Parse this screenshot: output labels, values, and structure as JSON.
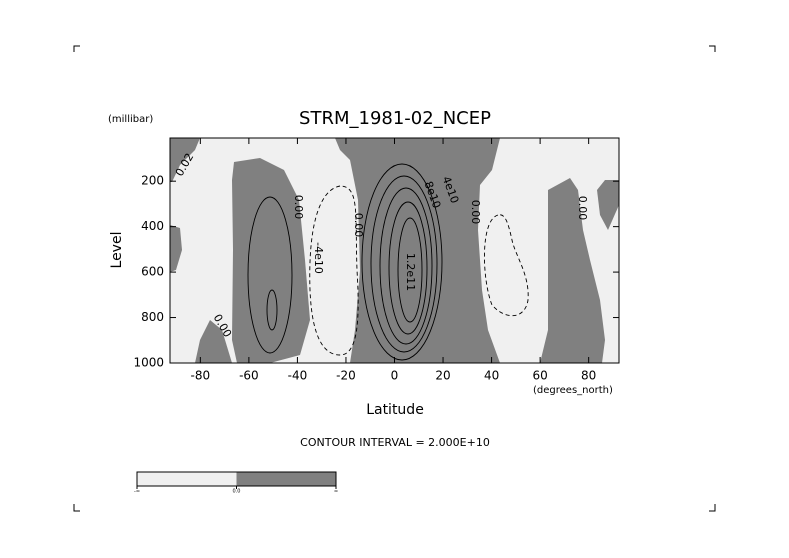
{
  "chart_data": {
    "type": "contour",
    "title": "STRM_1981-02_NCEP",
    "y_unit": "(millibar)",
    "y_label": "Level",
    "x_label": "Latitude",
    "x_unit": "(degrees_north)",
    "contour_interval": "CONTOUR INTERVAL = 2.000E+10",
    "xlim": [
      -92.5,
      92.5
    ],
    "xticks": [
      -80,
      -60,
      -40,
      -20,
      0,
      20,
      40,
      60,
      80
    ],
    "ylim": [
      1000,
      10
    ],
    "yticks": [
      200,
      400,
      600,
      800,
      1000
    ],
    "fill_colors": [
      "#f0f0f0",
      "#808080"
    ],
    "colorbar_labels": [
      "-∞",
      "0.0",
      "∞"
    ],
    "contour_labels": [
      "0.02",
      "0.00",
      "-4e10",
      "0.00",
      "4e10",
      "8e10",
      "1.2e11",
      "0.00",
      "0.00",
      "0.00"
    ]
  }
}
